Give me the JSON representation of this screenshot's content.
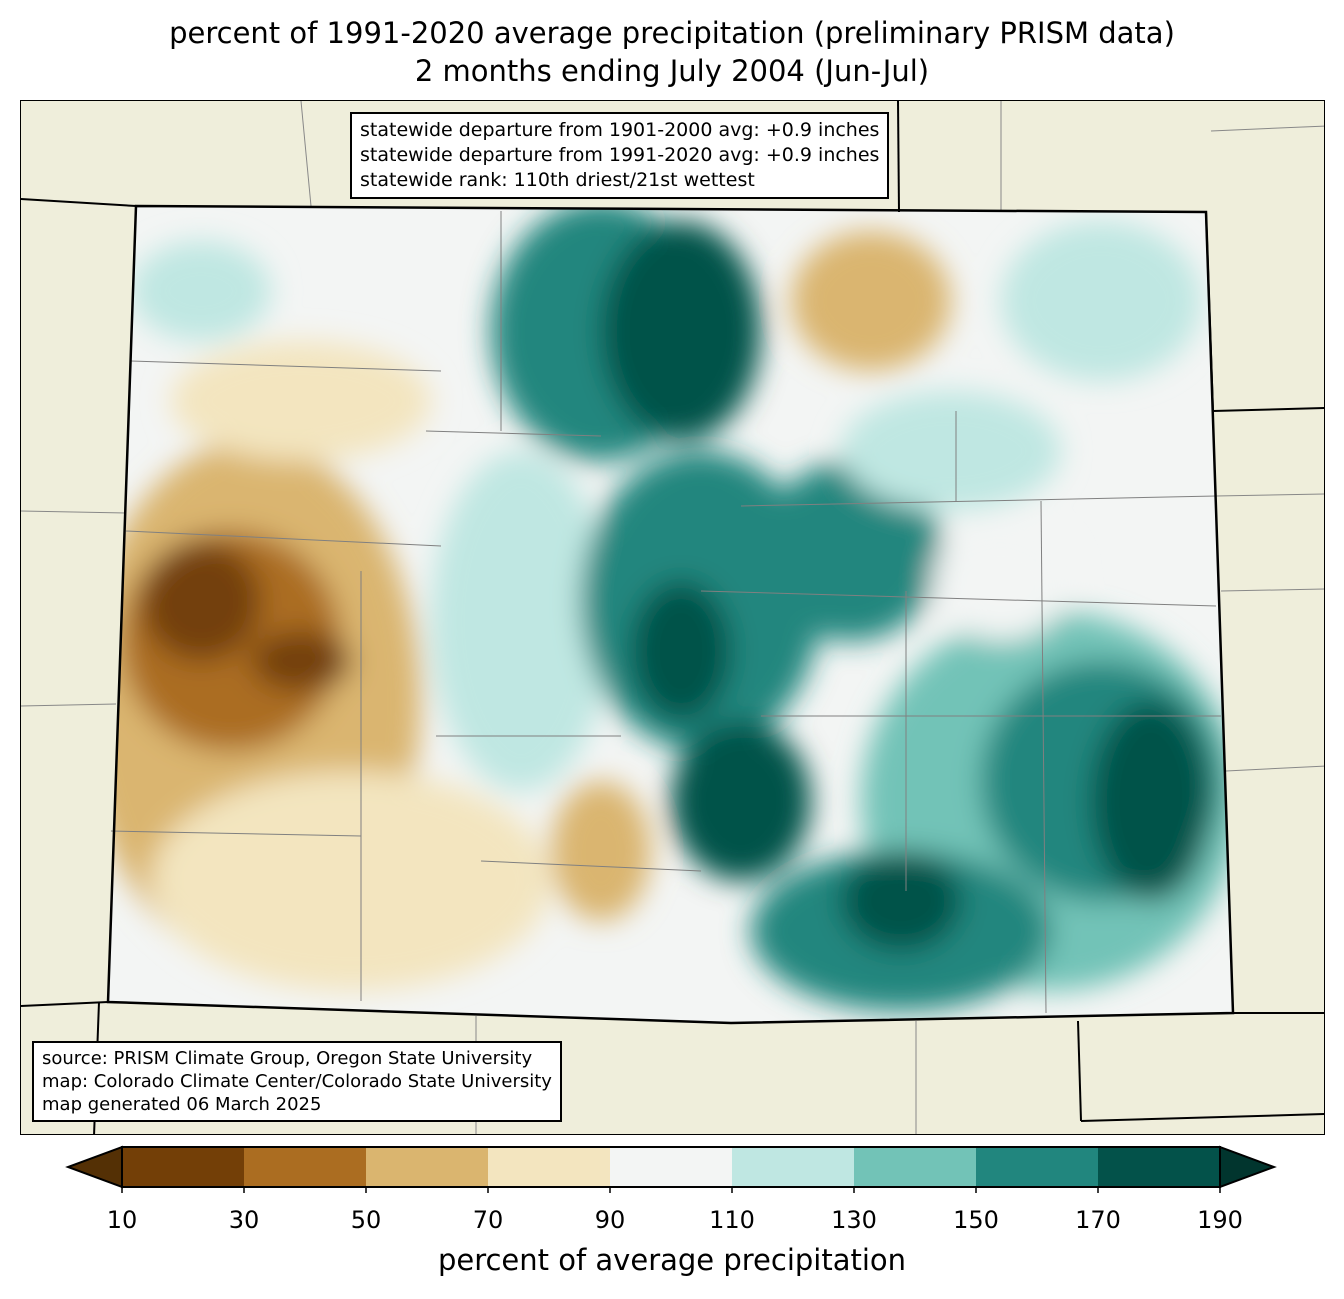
{
  "title_line1": "percent of 1991-2020 average precipitation (preliminary PRISM data)",
  "title_line2": "2 months ending July 2004 (Jun-Jul)",
  "stats": {
    "line1": "statewide departure from 1901-2000 avg: +0.9 inches",
    "line2": "statewide departure from 1991-2020 avg: +0.9 inches",
    "line3": "statewide rank: 110th driest/21st wettest"
  },
  "source": {
    "line1": "source: PRISM Climate Group, Oregon State University",
    "line2": "map: Colorado Climate Center/Colorado State University",
    "line3": "map generated 06 March 2025"
  },
  "colorbar": {
    "label": "percent of average precipitation",
    "ticks": [
      "10",
      "30",
      "50",
      "70",
      "90",
      "110",
      "130",
      "150",
      "170",
      "190"
    ],
    "colors": [
      "#733f07",
      "#ab6d21",
      "#dab56f",
      "#f3e5bf",
      "#f3f5f4",
      "#bfe7e2",
      "#72c3b7",
      "#21867e",
      "#03524a"
    ],
    "under_color": "#543005",
    "over_color": "#01352e"
  }
}
